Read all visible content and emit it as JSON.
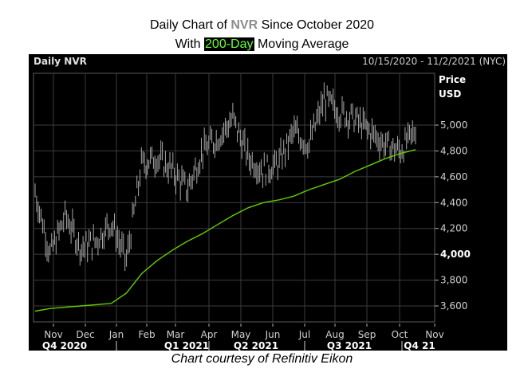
{
  "title": {
    "line1_prefix": "Daily Chart of ",
    "ticker": "NVR",
    "line1_suffix": " Since October 2020",
    "line2_prefix": "With ",
    "highlight": "200-Day",
    "line2_suffix": " Moving Average"
  },
  "panel": {
    "label": "Daily NVR",
    "date_range": "10/15/2020 - 11/2/2021 (NYC)",
    "price_label_1": "Price",
    "price_label_2": "USD"
  },
  "caption": "Chart courtesy of Refinitiv Eikon",
  "colors": {
    "background": "#000000",
    "price_bars": "#a8a8a8",
    "moving_average": "#66cc00",
    "grid": "#3c3c3c",
    "ticker_text": "#8c8c8c",
    "highlight_text": "#66ff33"
  },
  "chart_data": {
    "type": "line",
    "title": "Daily Chart of NVR Since October 2020 With 200-Day Moving Average",
    "xlabel": "",
    "ylabel": "Price USD",
    "ylim": [
      3500,
      5250
    ],
    "grid": true,
    "y_ticks": [
      "3,600",
      "3,800",
      "4,000",
      "4,200",
      "4,400",
      "4,600",
      "4,800",
      "5,000"
    ],
    "x_month_labels": [
      "Nov",
      "Dec",
      "Jan",
      "Feb",
      "Mar",
      "Apr",
      "May",
      "Jun",
      "Jul",
      "Aug",
      "Sep",
      "Oct",
      "Nov"
    ],
    "x_quarter_labels": [
      "Q4 2020",
      "Q1 2021",
      "Q2 2021",
      "Q3 2021",
      "Q4 21"
    ],
    "date_range": "10/15/2020 - 11/2/2021",
    "x": [
      "2020-10-15",
      "2020-11-01",
      "2020-11-15",
      "2020-12-01",
      "2020-12-15",
      "2021-01-01",
      "2021-01-15",
      "2021-02-01",
      "2021-02-15",
      "2021-03-01",
      "2021-03-15",
      "2021-04-01",
      "2021-04-15",
      "2021-05-01",
      "2021-05-15",
      "2021-06-01",
      "2021-06-15",
      "2021-07-01",
      "2021-07-15",
      "2021-08-01",
      "2021-08-15",
      "2021-09-01",
      "2021-09-15",
      "2021-10-01",
      "2021-10-15",
      "2021-11-02"
    ],
    "series": [
      {
        "name": "NVR Daily Close",
        "values": [
          4480,
          4000,
          4300,
          4050,
          4100,
          4250,
          3950,
          4700,
          4750,
          4650,
          4500,
          4800,
          4900,
          5050,
          4750,
          4650,
          4700,
          4950,
          4850,
          5200,
          5100,
          5050,
          4950,
          4850,
          4800,
          4960
        ]
      },
      {
        "name": "200-Day Moving Average",
        "values": [
          3560,
          3580,
          3590,
          3600,
          3610,
          3620,
          3700,
          3850,
          3950,
          4030,
          4100,
          4160,
          4230,
          4300,
          4360,
          4400,
          4420,
          4450,
          4500,
          4540,
          4580,
          4640,
          4690,
          4740,
          4780,
          4810
        ]
      }
    ]
  }
}
